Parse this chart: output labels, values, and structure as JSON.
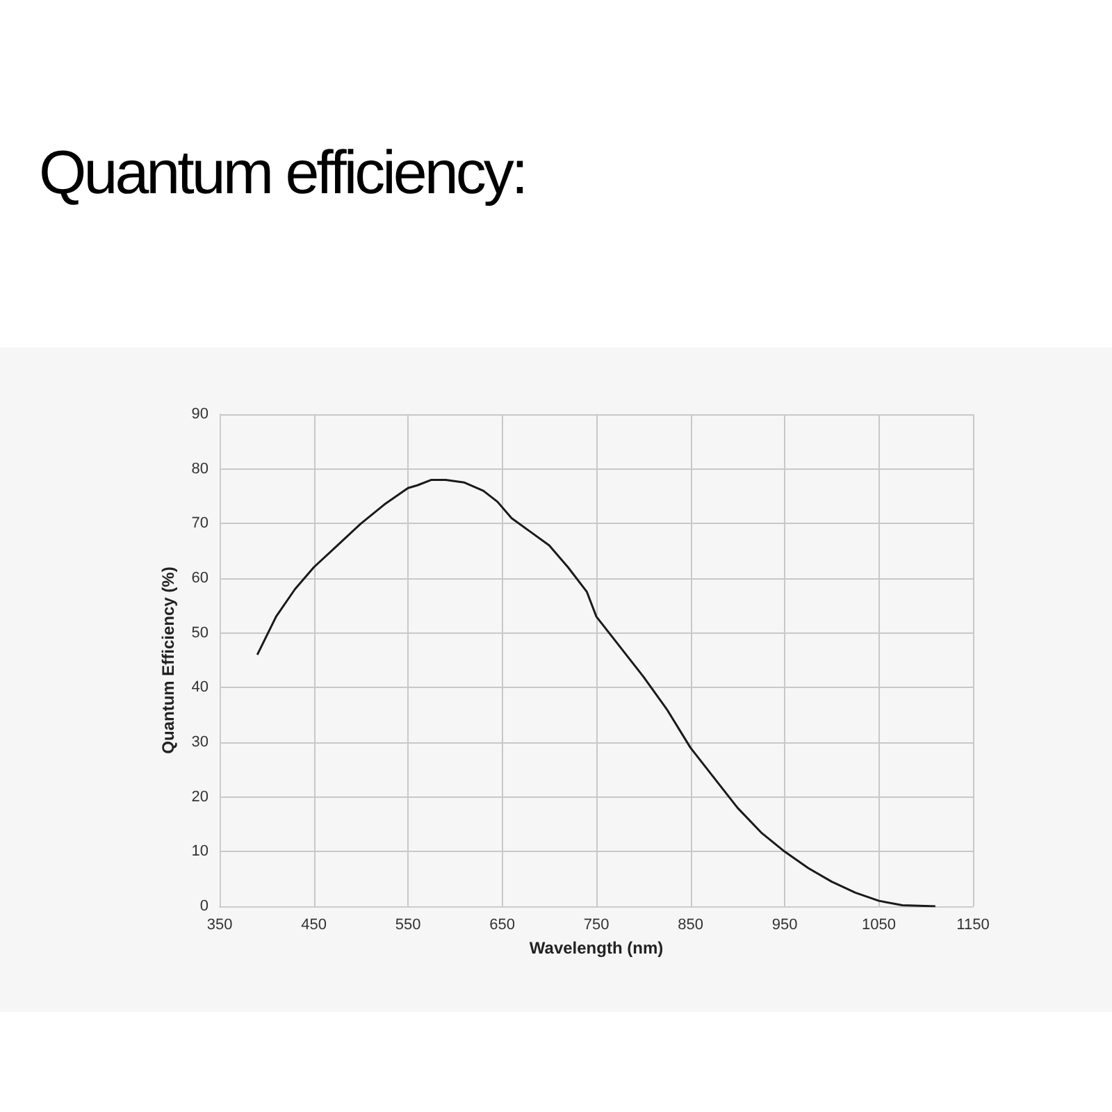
{
  "chart_data": {
    "type": "line",
    "title": "Quantum efficiency:",
    "xlabel": "Wavelength (nm)",
    "ylabel": "Quantum Efficiency (%)",
    "x": [
      390,
      410,
      430,
      450,
      475,
      500,
      525,
      550,
      560,
      575,
      590,
      610,
      630,
      645,
      660,
      680,
      700,
      720,
      740,
      750,
      775,
      800,
      825,
      850,
      875,
      900,
      925,
      950,
      975,
      1000,
      1025,
      1050,
      1075,
      1110
    ],
    "series": [
      {
        "color": "#1a1a1a",
        "values": [
          46,
          53,
          58,
          62,
          66,
          70,
          73.5,
          76.5,
          77,
          78,
          78,
          77.5,
          76,
          74,
          71,
          68.5,
          66,
          62,
          57.5,
          53,
          47.5,
          42,
          36,
          29,
          23.5,
          18,
          13.5,
          10,
          7,
          4.5,
          2.5,
          1,
          0.2,
          0
        ]
      }
    ],
    "xlim": [
      350,
      1150
    ],
    "xticks": [
      350,
      450,
      550,
      650,
      750,
      850,
      950,
      1050,
      1150
    ],
    "ylim": [
      0,
      90
    ],
    "yticks": [
      0,
      10,
      20,
      30,
      40,
      50,
      60,
      70,
      80,
      90
    ],
    "grid": true,
    "marker": "none",
    "line_style": "solid"
  }
}
